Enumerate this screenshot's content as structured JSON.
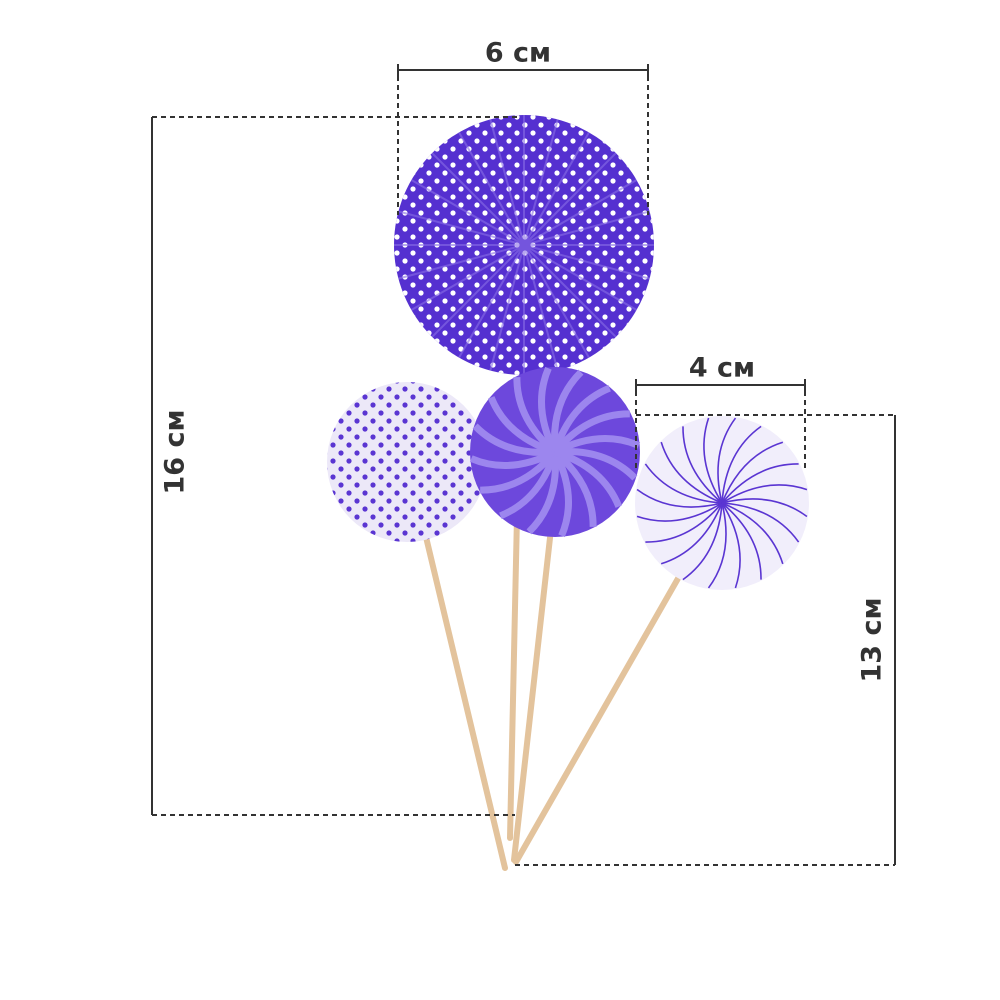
{
  "dimensions": {
    "large_width": "6 см",
    "small_width": "4 см",
    "tall_height": "16 см",
    "short_height": "13 см"
  },
  "colors": {
    "deep_purple": "#5530d0",
    "light_lavender": "#e8e2f8",
    "stick": "#e3c39c",
    "dimension_line": "#333333"
  }
}
